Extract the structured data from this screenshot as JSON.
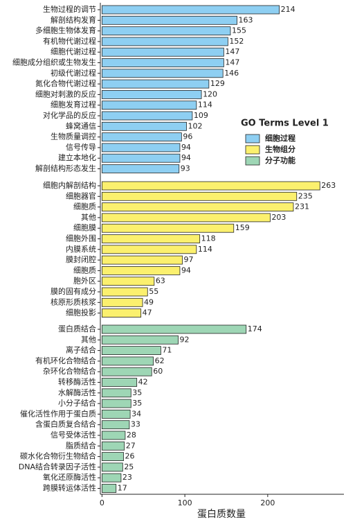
{
  "chart_data": {
    "type": "bar",
    "orientation": "horizontal",
    "xlabel": "蛋白质数量",
    "legend_title": "GO Terms Level 1",
    "xlim": [
      -2,
      292
    ],
    "xticks": [
      0,
      100,
      200
    ],
    "series": [
      {
        "name": "细胞过程",
        "color": "#8ecff2",
        "categories": [
          "生物过程的调节",
          "解剖结构发育",
          "多细胞生物体发育",
          "有机物代谢过程",
          "细胞代谢过程",
          "细胞成分组织或生物发生",
          "初级代谢过程",
          "氮化合物代谢过程",
          "细胞对刺激的反应",
          "细胞发育过程",
          "对化学品的反应",
          "蜂窝通信",
          "生物质量调控",
          "信号传导",
          "建立本地化",
          "解剖结构形态发生"
        ],
        "values": [
          214,
          163,
          155,
          152,
          147,
          147,
          146,
          129,
          120,
          114,
          109,
          102,
          96,
          94,
          94,
          93
        ]
      },
      {
        "name": "生物组分",
        "color": "#fbf06e",
        "categories": [
          "细胞内解剖结构",
          "细胞器官",
          "细胞质",
          "其他",
          "细胞膜",
          "细胞外围",
          "内膜系统",
          "膜封闭腔",
          "细胞质",
          "胞外区",
          "膜的固有成分",
          "核原形质核浆",
          "细胞投影"
        ],
        "values": [
          263,
          235,
          231,
          203,
          159,
          118,
          114,
          97,
          94,
          63,
          55,
          49,
          47
        ]
      },
      {
        "name": "分子功能",
        "color": "#9ed6b5",
        "categories": [
          "蛋白质结合",
          "其他",
          "离子结合",
          "有机环化合物结合",
          "杂环化合物结合",
          "转移酶活性",
          "水解酶活性",
          "小分子结合",
          "催化活性作用于蛋白质",
          "含蛋白质复合结合",
          "信号受体活性",
          "脂质结合",
          "碳水化合物衍生物结合",
          "DNA结合转录因子活性",
          "氧化还原酶活性",
          "跨膜转运体活性"
        ],
        "values": [
          174,
          92,
          71,
          62,
          60,
          42,
          35,
          35,
          34,
          33,
          28,
          27,
          26,
          25,
          23,
          17
        ]
      }
    ]
  }
}
